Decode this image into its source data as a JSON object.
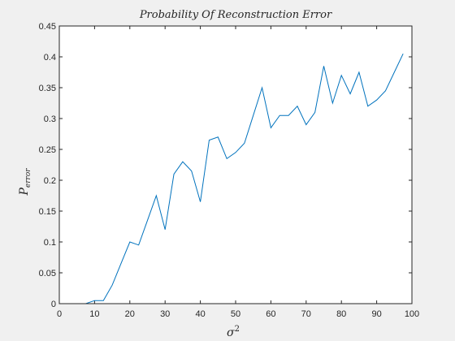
{
  "chart_data": {
    "type": "line",
    "title": "Probability Of Reconstruction Error",
    "xlabel": {
      "base": "σ",
      "sup": "2"
    },
    "ylabel": {
      "base": "P",
      "sub": "error"
    },
    "xlim": [
      0,
      100
    ],
    "ylim": [
      0,
      0.45
    ],
    "xticks": [
      "0",
      "10",
      "20",
      "30",
      "40",
      "50",
      "60",
      "70",
      "80",
      "90",
      "100"
    ],
    "yticks": [
      "0",
      "0.05",
      "0.1",
      "0.15",
      "0.2",
      "0.25",
      "0.3",
      "0.35",
      "0.4",
      "0.45"
    ],
    "grid": false,
    "line_color": "#0072bd",
    "series": [
      {
        "x": [
          0,
          2.5,
          5,
          7.5,
          10,
          12.5,
          15,
          17.5,
          20,
          22.5,
          25,
          27.5,
          30,
          32.5,
          35,
          37.5,
          40,
          42.5,
          45,
          47.5,
          50,
          52.5,
          55,
          57.5,
          60,
          62.5,
          65,
          67.5,
          70,
          72.5,
          75,
          77.5,
          80,
          82.5,
          85,
          87.5,
          90,
          92.5,
          95,
          97.5
        ],
        "y": [
          0,
          0,
          0,
          0,
          0.005,
          0.005,
          0.03,
          0.065,
          0.1,
          0.095,
          0.135,
          0.175,
          0.12,
          0.21,
          0.23,
          0.215,
          0.165,
          0.265,
          0.27,
          0.235,
          0.245,
          0.26,
          0.305,
          0.35,
          0.285,
          0.305,
          0.305,
          0.32,
          0.29,
          0.31,
          0.385,
          0.325,
          0.37,
          0.34,
          0.375,
          0.32,
          0.33,
          0.345,
          0.375,
          0.405
        ]
      }
    ]
  }
}
